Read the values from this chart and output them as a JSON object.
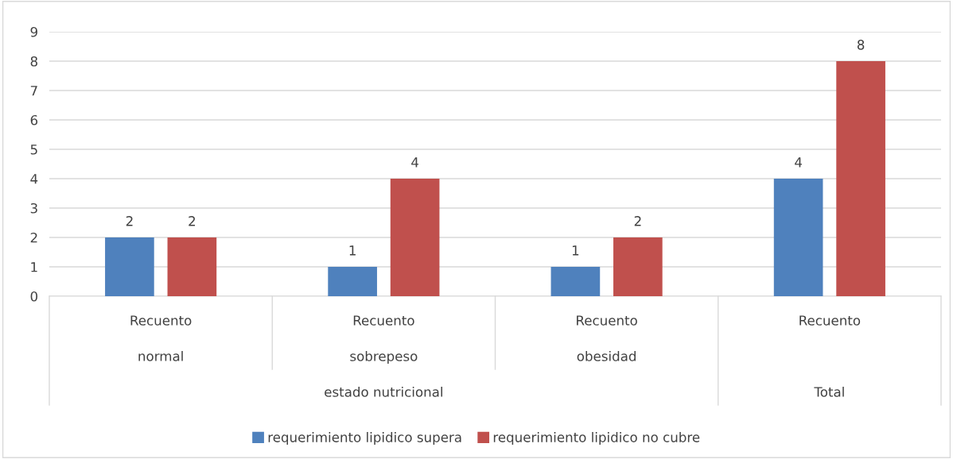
{
  "chart_data": {
    "type": "bar",
    "categories": [
      "Recuento\nnormal",
      "Recuento\nsobrepeso",
      "Recuento\nobesidad",
      "Recuento"
    ],
    "series": [
      {
        "name": "requerimiento lipidico supera",
        "color": "#4f81bd",
        "values": [
          2,
          1,
          1,
          4
        ]
      },
      {
        "name": "requerimiento lipidico no cubre",
        "color": "#c0504d",
        "values": [
          2,
          4,
          2,
          8
        ]
      }
    ],
    "ylim": [
      0,
      9
    ],
    "yticks": [
      0,
      1,
      2,
      3,
      4,
      5,
      6,
      7,
      8,
      9
    ],
    "grid": "y",
    "legend": "bottom",
    "data_labels": true,
    "annotations": [
      "estado nutricional",
      "Total"
    ]
  }
}
